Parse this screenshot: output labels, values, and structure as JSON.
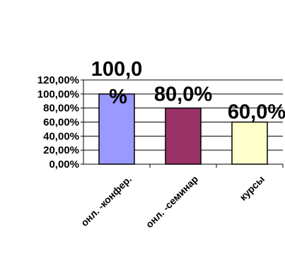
{
  "chart_data": {
    "type": "bar",
    "title": "",
    "xlabel": "",
    "ylabel": "",
    "categories": [
      "онл. -конфер.",
      "онл. -семинар",
      "курсы"
    ],
    "values": [
      100.0,
      80.0,
      60.0
    ],
    "data_labels": [
      "100,0%",
      "80,0%",
      "60,0%"
    ],
    "y_ticks": [
      "0,00%",
      "20,00%",
      "40,00%",
      "60,00%",
      "80,00%",
      "100,00%",
      "120,00%"
    ],
    "ylim": [
      0,
      120
    ],
    "grid": true,
    "legend": "none",
    "bar_colors": [
      "#9999ff",
      "#993366",
      "#ffffcc"
    ]
  }
}
